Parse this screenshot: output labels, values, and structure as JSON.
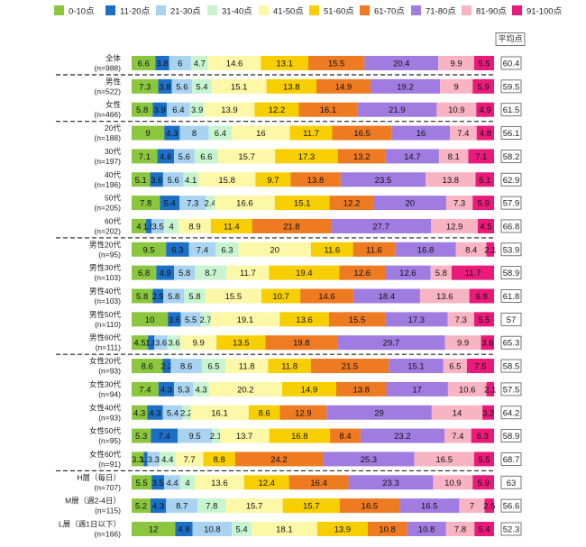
{
  "chart_data": {
    "type": "stacked-bar-horizontal",
    "legend": [
      {
        "label": "0-10点",
        "color": "#8cc63f"
      },
      {
        "label": "11-20点",
        "color": "#1c6fc7"
      },
      {
        "label": "21-30点",
        "color": "#a9d3f0"
      },
      {
        "label": "31-40点",
        "color": "#c8f5d0"
      },
      {
        "label": "41-50点",
        "color": "#fdf7a8"
      },
      {
        "label": "51-60点",
        "color": "#f7cf00"
      },
      {
        "label": "61-70点",
        "color": "#ee7a22"
      },
      {
        "label": "71-80点",
        "color": "#a07ce0"
      },
      {
        "label": "81-90点",
        "color": "#f8b4c2"
      },
      {
        "label": "91-100点",
        "color": "#ea1a7a"
      }
    ],
    "avg_header": "平均点",
    "rows": [
      {
        "name": "全体",
        "n": "(n=988)",
        "values": [
          6.6,
          3.8,
          6,
          4.7,
          14.6,
          13.1,
          15.5,
          20.4,
          9.9,
          5.5
        ],
        "labels": [
          "6.6",
          "3.8",
          "6",
          "4.7",
          "14.6",
          "13.1",
          "15.5",
          "20.4",
          "9.9",
          "5.5"
        ],
        "avg": "60.4"
      },
      {
        "name": "男性",
        "n": "(n=522)",
        "values": [
          7.3,
          3.8,
          5.6,
          5.4,
          15.1,
          13.8,
          14.9,
          19.2,
          9,
          5.9
        ],
        "labels": [
          "7.3",
          "3.8",
          "5.6",
          "5.4",
          "15.1",
          "13.8",
          "14.9",
          "19.2",
          "9",
          "5.9"
        ],
        "avg": "59.5"
      },
      {
        "name": "女性",
        "n": "(n=466)",
        "values": [
          5.8,
          3.9,
          6.4,
          3.9,
          13.9,
          12.2,
          16.1,
          21.9,
          10.9,
          4.9
        ],
        "labels": [
          "5.8",
          "3.9",
          "6.4",
          "3.9",
          "13.9",
          "12.2",
          "16.1",
          "21.9",
          "10.9",
          "4.9"
        ],
        "avg": "61.5"
      },
      {
        "name": "20代",
        "n": "(n=188)",
        "values": [
          9,
          4.3,
          8,
          6.4,
          16,
          11.7,
          16.5,
          16,
          7.4,
          4.8
        ],
        "labels": [
          "9",
          "4.3",
          "8",
          "6.4",
          "16",
          "11.7",
          "16.5",
          "16",
          "7.4",
          "4.8"
        ],
        "avg": "56.1"
      },
      {
        "name": "30代",
        "n": "(n=197)",
        "values": [
          7.1,
          4.6,
          5.6,
          6.6,
          15.7,
          17.3,
          13.2,
          14.7,
          8.1,
          7.1
        ],
        "labels": [
          "7.1",
          "4.6",
          "5.6",
          "6.6",
          "15.7",
          "17.3",
          "13.2",
          "14.7",
          "8.1",
          "7.1"
        ],
        "avg": "58.2"
      },
      {
        "name": "40代",
        "n": "(n=196)",
        "values": [
          5.1,
          3.6,
          5.6,
          4.1,
          15.8,
          9.7,
          13.8,
          23.5,
          13.8,
          5.1
        ],
        "labels": [
          "5.1",
          "3.6",
          "5.6",
          "4.1",
          "15.8",
          "9.7",
          "13.8",
          "23.5",
          "13.8",
          "5.1"
        ],
        "avg": "62.9"
      },
      {
        "name": "50代",
        "n": "(n=205)",
        "values": [
          7.8,
          5.4,
          7.3,
          2.4,
          16.6,
          15.1,
          12.2,
          20,
          7.3,
          5.9
        ],
        "labels": [
          "7.8",
          "5.4",
          "7.3",
          "2.4",
          "16.6",
          "15.1",
          "12.2",
          "20",
          "7.3",
          "5.9"
        ],
        "avg": "57.9"
      },
      {
        "name": "60代",
        "n": "(n=202)",
        "values": [
          4,
          1.5,
          3.5,
          4,
          8.9,
          11.4,
          21.8,
          27.7,
          12.9,
          4.5
        ],
        "labels": [
          "4",
          "1.5",
          "3.5",
          "4",
          "8.9",
          "11.4",
          "21.8",
          "27.7",
          "12.9",
          "4.5"
        ],
        "avg": "66.8"
      },
      {
        "name": "男性20代",
        "n": "(n=95)",
        "values": [
          9.5,
          6.3,
          7.4,
          6.3,
          20,
          11.6,
          11.6,
          16.8,
          8.4,
          2.1
        ],
        "labels": [
          "9.5",
          "6.3",
          "7.4",
          "6.3",
          "20",
          "11.6",
          "11.6",
          "16.8",
          "8.4",
          "2.1"
        ],
        "avg": "53.9"
      },
      {
        "name": "男性30代",
        "n": "(n=103)",
        "values": [
          6.8,
          4.9,
          5.8,
          8.7,
          11.7,
          19.4,
          12.6,
          12.6,
          5.8,
          11.7
        ],
        "labels": [
          "6.8",
          "4.9",
          "5.8",
          "8.7",
          "11.7",
          "19.4",
          "12.6",
          "12.6",
          "5.8",
          "11.7"
        ],
        "avg": "58.9"
      },
      {
        "name": "男性40代",
        "n": "(n=103)",
        "values": [
          5.8,
          2.9,
          5.8,
          5.8,
          15.5,
          10.7,
          14.6,
          18.4,
          13.6,
          6.8
        ],
        "labels": [
          "5.8",
          "2.9",
          "5.8",
          "5.8",
          "15.5",
          "10.7",
          "14.6",
          "18.4",
          "13.6",
          "6.8"
        ],
        "avg": "61.8"
      },
      {
        "name": "男性50代",
        "n": "(n=110)",
        "values": [
          10,
          3.6,
          5.5,
          2.7,
          19.1,
          13.6,
          15.5,
          17.3,
          7.3,
          5.5
        ],
        "labels": [
          "10",
          "3.6",
          "5.5",
          "2.7",
          "19.1",
          "13.6",
          "15.5",
          "17.3",
          "7.3",
          "5.5"
        ],
        "avg": "57"
      },
      {
        "name": "男性60代",
        "n": "(n=111)",
        "values": [
          4.5,
          1.8,
          3.6,
          3.6,
          9.9,
          13.5,
          19.8,
          29.7,
          9.9,
          3.6
        ],
        "labels": [
          "4.5",
          "1.8",
          "3.6",
          "3.6",
          "9.9",
          "13.5",
          "19.8",
          "29.7",
          "9.9",
          "3.6"
        ],
        "avg": "65.3"
      },
      {
        "name": "女性20代",
        "n": "(n=93)",
        "values": [
          8.6,
          2.2,
          8.6,
          6.5,
          11.8,
          11.8,
          21.5,
          15.1,
          6.5,
          7.5
        ],
        "labels": [
          "8.6",
          "2.2",
          "8.6",
          "6.5",
          "11.8",
          "11.8",
          "21.5",
          "15.1",
          "6.5",
          "7.5"
        ],
        "avg": "58.5"
      },
      {
        "name": "女性30代",
        "n": "(n=94)",
        "values": [
          7.4,
          4.3,
          5.3,
          4.3,
          20.2,
          14.9,
          13.8,
          17,
          10.6,
          2.1
        ],
        "labels": [
          "7.4",
          "4.3",
          "5.3",
          "4.3",
          "20.2",
          "14.9",
          "13.8",
          "17",
          "10.6",
          "2.1"
        ],
        "avg": "57.5"
      },
      {
        "name": "女性40代",
        "n": "(n=93)",
        "values": [
          4.3,
          4.3,
          5.4,
          2.2,
          16.1,
          8.6,
          12.9,
          29,
          14,
          3.2
        ],
        "labels": [
          "4.3",
          "4.3",
          "5.4",
          "2.2",
          "16.1",
          "8.6",
          "12.9",
          "29",
          "14",
          "3.2"
        ],
        "avg": "64.2"
      },
      {
        "name": "女性50代",
        "n": "(n=95)",
        "values": [
          5.3,
          7.4,
          9.5,
          2.1,
          13.7,
          16.8,
          8.4,
          23.2,
          7.4,
          6.3
        ],
        "labels": [
          "5.3",
          "7.4",
          "9.5",
          "2.1",
          "13.7",
          "16.8",
          "8.4",
          "23.2",
          "7.4",
          "6.3"
        ],
        "avg": "58.9"
      },
      {
        "name": "女性60代",
        "n": "(n=91)",
        "values": [
          3.3,
          1.1,
          3.3,
          4.4,
          7.7,
          8.8,
          24.2,
          25.3,
          16.5,
          5.5
        ],
        "labels": [
          "3.3",
          "1.1",
          "3.3",
          "4.4",
          "7.7",
          "8.8",
          "24.2",
          "25.3",
          "16.5",
          "5.5"
        ],
        "avg": "68.7"
      },
      {
        "name": "H層（毎日）",
        "n": "(n=707)",
        "values": [
          5.5,
          3.5,
          4.4,
          4,
          13.6,
          12.4,
          16.4,
          23.3,
          10.9,
          5.9
        ],
        "labels": [
          "5.5",
          "3.5",
          "4.4",
          "4",
          "13.6",
          "12.4",
          "16.4",
          "23.3",
          "10.9",
          "5.9"
        ],
        "avg": "63"
      },
      {
        "name": "M層（週2-4日）",
        "n": "(n=115)",
        "values": [
          5.2,
          4.3,
          8.7,
          7.8,
          15.7,
          15.7,
          16.5,
          16.5,
          7,
          2.6
        ],
        "labels": [
          "5.2",
          "4.3",
          "8.7",
          "7.8",
          "15.7",
          "15.7",
          "16.5",
          "16.5",
          "7",
          "2.6"
        ],
        "avg": "56.6"
      },
      {
        "name": "L層（週1日以下）",
        "n": "(n=166)",
        "values": [
          12,
          4.8,
          10.8,
          5.4,
          18.1,
          13.9,
          10.8,
          10.8,
          7.8,
          5.4
        ],
        "labels": [
          "12",
          "4.8",
          "10.8",
          "5.4",
          "18.1",
          "13.9",
          "10.8",
          "10.8",
          "7.8",
          "5.4"
        ],
        "avg": "52.3"
      }
    ]
  }
}
